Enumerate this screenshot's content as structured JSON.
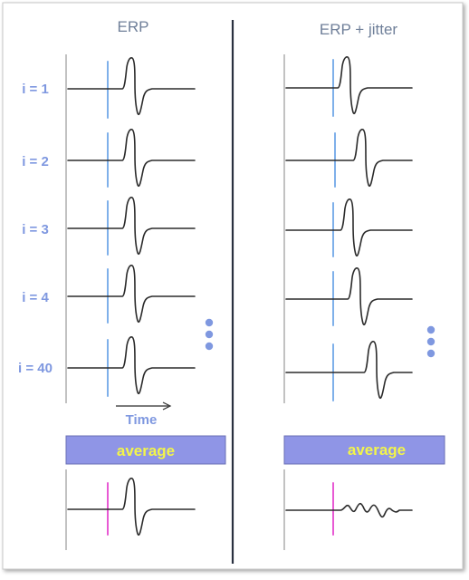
{
  "left_panel": {
    "title": "ERP",
    "trial_labels": [
      "i = 1",
      "i = 2",
      "i = 3",
      "i = 4",
      "i = 40"
    ],
    "time_label": "Time",
    "average_label": "average"
  },
  "right_panel": {
    "title": "ERP + jitter",
    "average_label": "average"
  },
  "ellipsis": "•••",
  "colors": {
    "label_blue": "#7f98e0",
    "title_gray": "#6f7f99",
    "onset_line": "#7fb0ea",
    "average_onset_line": "#e85ad4",
    "average_bar_fill": "#8f95e6",
    "average_bar_border": "#6a6fb4",
    "average_text": "#f3f54a",
    "divider": "#2a3140",
    "axis": "#9a9a9a",
    "trace": "#2b2b2b"
  },
  "jitter": {
    "erp_onset_relative_to_stimulus": [
      0.56,
      0.47,
      0.23,
      0.34,
      0.73
    ],
    "trial_count": 40
  }
}
